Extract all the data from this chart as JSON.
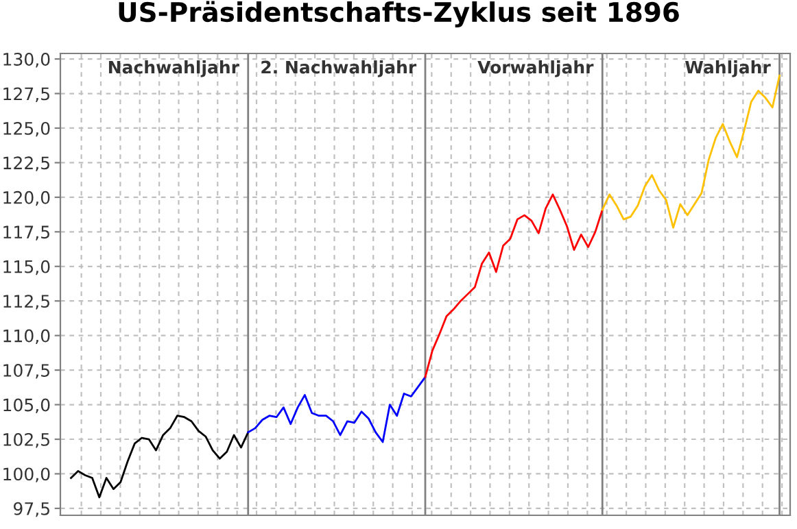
{
  "chart_data": {
    "type": "line",
    "title": "US-Präsidentschafts-Zyklus seit 1896",
    "annotations": [
      "Nachwahljahr",
      "2. Nachwahljahr",
      "Vorwahljahr",
      "Wahljahr"
    ],
    "categories": [
      null,
      null,
      null,
      null,
      null,
      null,
      null,
      null,
      null,
      null,
      null,
      null,
      null,
      null,
      null,
      null,
      null,
      null,
      null,
      null,
      null,
      null,
      null,
      null,
      null,
      null,
      null,
      null,
      null,
      null,
      null,
      null,
      null,
      null,
      null,
      null,
      null,
      null,
      null,
      null,
      null,
      null,
      null,
      null,
      null,
      null,
      null,
      null,
      null,
      null,
      null,
      null,
      null,
      null,
      null,
      null,
      null,
      null,
      null,
      null,
      null,
      null,
      null,
      null,
      null,
      null,
      null,
      null,
      null,
      null,
      null,
      null,
      null,
      null,
      null,
      null,
      null,
      null,
      null,
      null,
      null,
      null,
      null,
      null,
      null,
      null,
      null,
      null,
      null,
      null,
      null,
      null,
      null,
      null,
      null,
      null,
      null,
      null,
      null,
      null,
      null,
      null,
      null
    ],
    "series": [
      {
        "color": "#000000",
        "values": [
          null,
          99.7,
          100.2,
          99.9,
          99.7,
          98.3,
          99.7,
          98.9,
          99.4,
          100.9,
          102.2,
          102.6,
          102.5,
          101.7,
          102.8,
          103.3,
          104.2,
          104.1,
          103.8,
          103.1,
          102.7,
          101.7,
          101.1,
          101.6,
          102.8,
          101.9,
          103.0,
          null,
          null,
          null,
          null,
          null,
          null,
          null,
          null,
          null,
          null,
          null,
          null,
          null,
          null,
          null,
          null,
          null,
          null,
          null,
          null,
          null,
          null,
          null,
          null,
          null,
          null,
          null,
          null,
          null,
          null,
          null,
          null,
          null,
          null,
          null,
          null,
          null,
          null,
          null,
          null,
          null,
          null,
          null,
          null,
          null,
          null,
          null,
          null,
          null,
          null,
          null,
          null,
          null,
          null,
          null,
          null,
          null,
          null,
          null,
          null,
          null,
          null,
          null,
          null,
          null,
          null,
          null,
          null,
          null,
          null,
          null,
          null,
          null,
          null,
          null,
          null
        ]
      },
      {
        "color": "#0000ff",
        "values": [
          null,
          null,
          null,
          null,
          null,
          null,
          null,
          null,
          null,
          null,
          null,
          null,
          null,
          null,
          null,
          null,
          null,
          null,
          null,
          null,
          null,
          null,
          null,
          null,
          null,
          null,
          103.0,
          103.3,
          103.9,
          104.2,
          104.1,
          104.8,
          103.6,
          104.8,
          105.7,
          104.4,
          104.2,
          104.2,
          103.8,
          102.8,
          103.8,
          103.7,
          104.5,
          104.0,
          103.0,
          102.3,
          105.0,
          104.2,
          105.8,
          105.6,
          106.3,
          107.0,
          null,
          null,
          null,
          null,
          null,
          null,
          null,
          null,
          null,
          null,
          null,
          null,
          null,
          null,
          null,
          null,
          null,
          null,
          null,
          null,
          null,
          null,
          null,
          null,
          null,
          null,
          null,
          null,
          null,
          null,
          null,
          null,
          null,
          null,
          null,
          null,
          null,
          null,
          null,
          null,
          null,
          null,
          null,
          null,
          null,
          null,
          null,
          null,
          null,
          null,
          null
        ]
      },
      {
        "color": "#ff0000",
        "values": [
          null,
          null,
          null,
          null,
          null,
          null,
          null,
          null,
          null,
          null,
          null,
          null,
          null,
          null,
          null,
          null,
          null,
          null,
          null,
          null,
          null,
          null,
          null,
          null,
          null,
          null,
          null,
          null,
          null,
          null,
          null,
          null,
          null,
          null,
          null,
          null,
          null,
          null,
          null,
          null,
          null,
          null,
          null,
          null,
          null,
          null,
          null,
          null,
          null,
          null,
          null,
          107.0,
          108.9,
          110.1,
          111.4,
          111.9,
          112.5,
          113.0,
          113.5,
          115.2,
          116.0,
          114.6,
          116.5,
          117.0,
          118.4,
          118.7,
          118.3,
          117.4,
          119.2,
          120.2,
          119.1,
          117.9,
          116.2,
          117.3,
          116.4,
          117.5,
          119.1,
          null,
          null,
          null,
          null,
          null,
          null,
          null,
          null,
          null,
          null,
          null,
          null,
          null,
          null,
          null,
          null,
          null,
          null,
          null,
          null,
          null,
          null,
          null,
          null,
          null,
          null
        ]
      },
      {
        "color": "#ffc000",
        "values": [
          null,
          null,
          null,
          null,
          null,
          null,
          null,
          null,
          null,
          null,
          null,
          null,
          null,
          null,
          null,
          null,
          null,
          null,
          null,
          null,
          null,
          null,
          null,
          null,
          null,
          null,
          null,
          null,
          null,
          null,
          null,
          null,
          null,
          null,
          null,
          null,
          null,
          null,
          null,
          null,
          null,
          null,
          null,
          null,
          null,
          null,
          null,
          null,
          null,
          null,
          null,
          null,
          null,
          null,
          null,
          null,
          null,
          null,
          null,
          null,
          null,
          null,
          null,
          null,
          null,
          null,
          null,
          null,
          null,
          null,
          null,
          null,
          null,
          null,
          null,
          null,
          119.1,
          120.2,
          119.4,
          118.4,
          118.6,
          119.4,
          120.8,
          121.6,
          120.5,
          119.8,
          117.8,
          119.5,
          118.7,
          119.5,
          120.3,
          122.7,
          124.3,
          125.3,
          124.0,
          122.9,
          124.8,
          126.9,
          127.7,
          127.2,
          126.5,
          128.8,
          null
        ]
      }
    ],
    "ylim": [
      97.0,
      130.4
    ],
    "yticks": [
      {
        "value": 97.5,
        "label": "97,5"
      },
      {
        "value": 100,
        "label": "100,0"
      },
      {
        "value": 102.5,
        "label": "102,5"
      },
      {
        "value": 105,
        "label": "105,0"
      },
      {
        "value": 107.5,
        "label": "107,5"
      },
      {
        "value": 110,
        "label": "110,0"
      },
      {
        "value": 112.5,
        "label": "112,5"
      },
      {
        "value": 115,
        "label": "115,0"
      },
      {
        "value": 117.5,
        "label": "117,5"
      },
      {
        "value": 120,
        "label": "120,0"
      },
      {
        "value": 122.5,
        "label": "122,5"
      },
      {
        "value": 125,
        "label": "125,0"
      },
      {
        "value": 127.5,
        "label": "127,5"
      },
      {
        "value": 130,
        "label": "130,0"
      }
    ],
    "grid": true,
    "line_style": "solid",
    "marker": "none"
  }
}
